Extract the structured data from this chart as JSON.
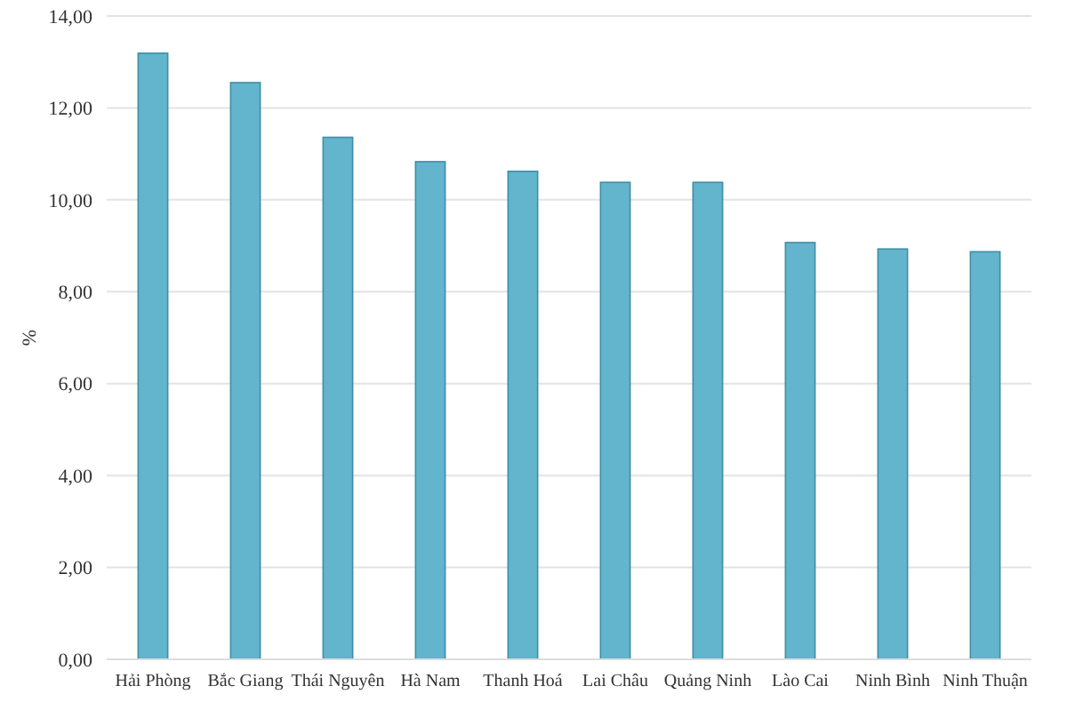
{
  "chart_data": {
    "type": "bar",
    "ylabel": "%",
    "categories": [
      "Hải Phòng",
      "Bắc Giang",
      "Thái Nguyên",
      "Hà Nam",
      "Thanh Hoá",
      "Lai Châu",
      "Quảng Ninh",
      "Lào Cai",
      "Ninh Bình",
      "Ninh Thuận"
    ],
    "values": [
      13.19,
      12.55,
      11.36,
      10.83,
      10.62,
      10.38,
      10.38,
      9.07,
      8.93,
      8.87
    ],
    "color": "#63b4cd",
    "ylim": [
      0,
      14
    ],
    "yticks": [
      {
        "value": 0,
        "label": "0,00"
      },
      {
        "value": 2,
        "label": "2,00"
      },
      {
        "value": 4,
        "label": "4,00"
      },
      {
        "value": 6,
        "label": "6,00"
      },
      {
        "value": 8,
        "label": "8,00"
      },
      {
        "value": 10,
        "label": "10,00"
      },
      {
        "value": 12,
        "label": "12,00"
      },
      {
        "value": 14,
        "label": "14,00"
      }
    ],
    "grid": "y"
  }
}
